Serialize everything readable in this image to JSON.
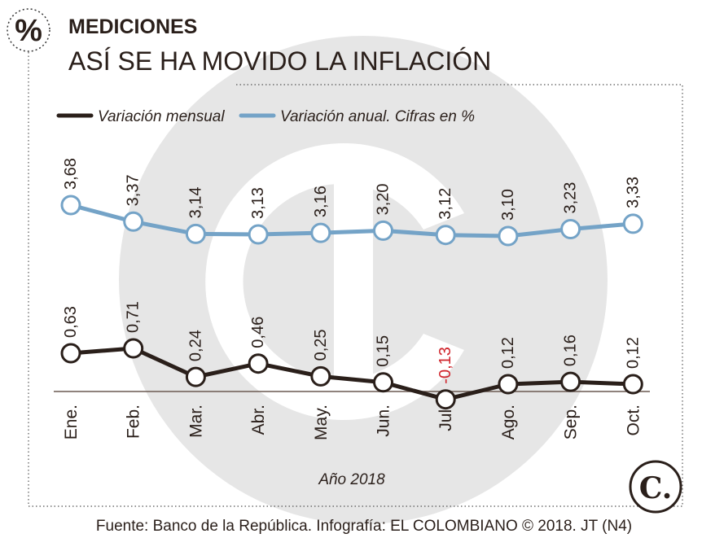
{
  "header": {
    "icon_symbol": "%",
    "kicker": "MEDICIONES",
    "title": "ASÍ SE HA MOVIDO LA INFLACIÓN"
  },
  "footer": {
    "source": "Fuente: Banco de la República. Infografía: EL COLOMBIANO © 2018. JT (N4)",
    "logo_letter": "C."
  },
  "colors": {
    "monthly": "#2a1f1a",
    "annual": "#74a3c7",
    "negative_label": "#d0242b",
    "watermark": "#e6e6e6",
    "baseline": "#6b5a52"
  },
  "chart_data": {
    "type": "line",
    "categories": [
      "Ene.",
      "Feb.",
      "Mar.",
      "Abr.",
      "May.",
      "Jun.",
      "Jul.",
      "Ago.",
      "Sep.",
      "Oct."
    ],
    "x_caption": "Año 2018",
    "series": [
      {
        "name": "Variación mensual",
        "values": [
          0.63,
          0.71,
          0.24,
          0.46,
          0.25,
          0.15,
          -0.13,
          0.12,
          0.16,
          0.12
        ],
        "labels": [
          "0,63",
          "0,71",
          "0,24",
          "0,46",
          "0,25",
          "0,15",
          "-0,13",
          "0,12",
          "0,16",
          "0,12"
        ]
      },
      {
        "name": "Variación anual. Cifras en %",
        "values": [
          3.68,
          3.37,
          3.14,
          3.13,
          3.16,
          3.2,
          3.12,
          3.1,
          3.23,
          3.33
        ],
        "labels": [
          "3,68",
          "3,37",
          "3,14",
          "3,13",
          "3,16",
          "3,20",
          "3,12",
          "3,10",
          "3,23",
          "3,33"
        ]
      }
    ],
    "legend_position": "top-left",
    "grid": false
  }
}
